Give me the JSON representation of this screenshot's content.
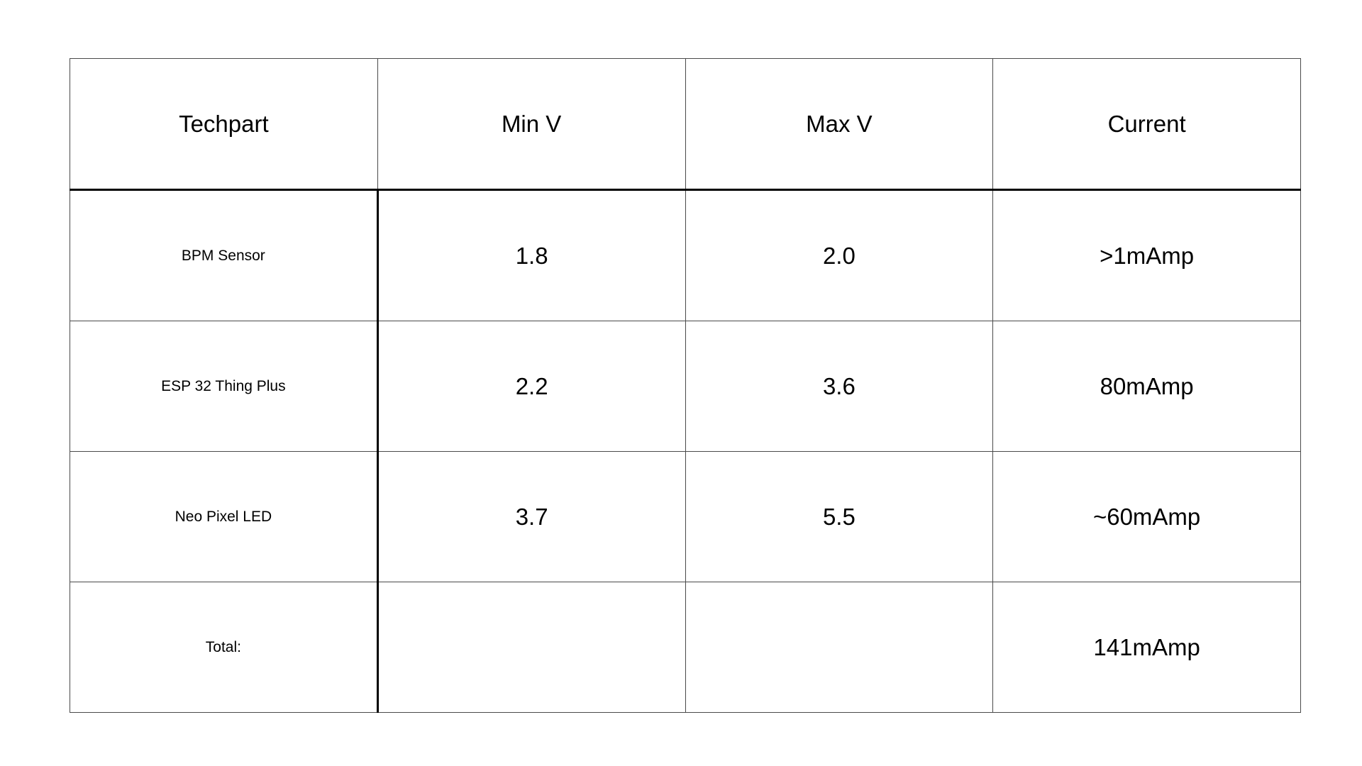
{
  "table": {
    "headers": [
      "Techpart",
      "Min V",
      "Max V",
      "Current"
    ],
    "rows": [
      {
        "techpart": "BPM Sensor",
        "min_v": "1.8",
        "max_v": "2.0",
        "current": ">1mAmp"
      },
      {
        "techpart": "ESP 32 Thing Plus",
        "min_v": "2.2",
        "max_v": "3.6",
        "current": "80mAmp"
      },
      {
        "techpart": "Neo Pixel LED",
        "min_v": "3.7",
        "max_v": "5.5",
        "current": "~60mAmp"
      },
      {
        "techpart": "Total:",
        "min_v": "",
        "max_v": "",
        "current": "141mAmp"
      }
    ]
  }
}
